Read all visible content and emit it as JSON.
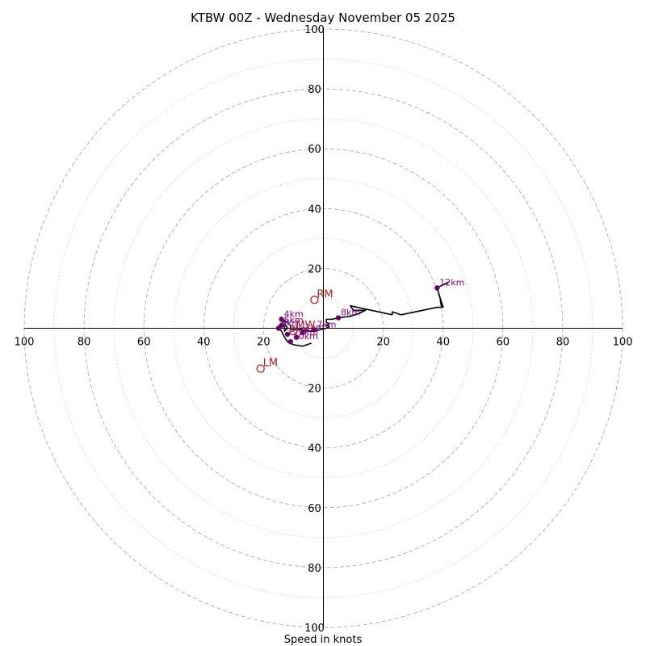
{
  "chart_data": {
    "type": "hodograph",
    "title": "KTBW 00Z - Wednesday November 05 2025",
    "xlabel": "Speed in knots",
    "units": "knots",
    "max_speed": 100,
    "tick_labels": [
      "20",
      "40",
      "60",
      "80",
      "100"
    ],
    "ring_speeds_dashed": [
      20,
      40,
      60,
      80,
      100
    ],
    "ring_speeds_dotted": [
      10,
      30,
      50,
      70,
      90
    ],
    "hodograph_line": [
      [
        -4,
        -5
      ],
      [
        -7,
        -6
      ],
      [
        -10,
        -5.5
      ],
      [
        -12,
        -4.5
      ],
      [
        -13,
        -3
      ],
      [
        -14,
        -1
      ],
      [
        -15,
        0.5
      ],
      [
        -13,
        1.5
      ],
      [
        -12,
        0
      ],
      [
        -13,
        -1
      ],
      [
        -13,
        0.5
      ],
      [
        -14,
        1.5
      ],
      [
        -13,
        2.5
      ],
      [
        -12,
        2
      ],
      [
        -11,
        1
      ],
      [
        -11,
        -0.5
      ],
      [
        -9,
        -0.5
      ],
      [
        -7,
        -0.5
      ],
      [
        -5,
        -1
      ],
      [
        -3,
        -1
      ],
      [
        -1,
        -0.5
      ],
      [
        1,
        0
      ],
      [
        2,
        0.5
      ],
      [
        1,
        1
      ],
      [
        2,
        1.5
      ],
      [
        1,
        2
      ],
      [
        1,
        3
      ],
      [
        3,
        3
      ],
      [
        5,
        3.5
      ],
      [
        9,
        4
      ],
      [
        12,
        5
      ],
      [
        14,
        6
      ],
      [
        10,
        6
      ],
      [
        9,
        7.5
      ],
      [
        23,
        4.5
      ],
      [
        23,
        5.5
      ],
      [
        26,
        4.5
      ],
      [
        38,
        7
      ],
      [
        39.5,
        7
      ],
      [
        39,
        10
      ],
      [
        40,
        7
      ],
      [
        38,
        13.5
      ],
      [
        42,
        15.5
      ]
    ],
    "height_markers": [
      {
        "label": "1km",
        "u": -9,
        "v": -3
      },
      {
        "label": "2km",
        "u": -7,
        "v": -1.5
      },
      {
        "label": "3km",
        "u": -12,
        "v": -2
      },
      {
        "label": "4km",
        "u": -14,
        "v": 3
      },
      {
        "label": "5km",
        "u": -14,
        "v": 1
      },
      {
        "label": "6km",
        "u": -15,
        "v": 0
      },
      {
        "label": "7km",
        "u": -3,
        "v": -0.5
      },
      {
        "label": "8km",
        "u": 5,
        "v": 3.5
      },
      {
        "label": "10km",
        "u": -11,
        "v": -4.5
      },
      {
        "label": "12km",
        "u": 38,
        "v": 13.5
      }
    ],
    "storm_motion": [
      {
        "label": "RM",
        "u": -3,
        "v": 9.5
      },
      {
        "label": "LM",
        "u": -21,
        "v": -13.5
      },
      {
        "label": "MW",
        "u": -10,
        "v": -1
      }
    ]
  }
}
